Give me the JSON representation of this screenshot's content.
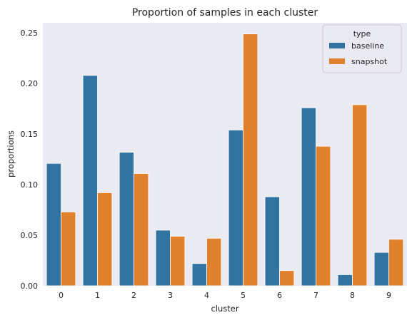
{
  "chart_data": {
    "type": "bar",
    "title": "Proportion of samples in each cluster",
    "xlabel": "cluster",
    "ylabel": "proportions",
    "categories": [
      "0",
      "1",
      "2",
      "3",
      "4",
      "5",
      "6",
      "7",
      "8",
      "9"
    ],
    "series": [
      {
        "name": "baseline",
        "color": "#3274a1",
        "values": [
          0.121,
          0.208,
          0.132,
          0.055,
          0.022,
          0.154,
          0.088,
          0.176,
          0.011,
          0.033
        ]
      },
      {
        "name": "snapshot",
        "color": "#e1812c",
        "values": [
          0.073,
          0.092,
          0.111,
          0.049,
          0.047,
          0.249,
          0.015,
          0.138,
          0.179,
          0.046
        ]
      }
    ],
    "ylim": [
      0,
      0.26
    ],
    "yticks": [
      "0.00",
      "0.05",
      "0.10",
      "0.15",
      "0.20",
      "0.25"
    ],
    "legend": {
      "title": "type",
      "position": "top-right"
    },
    "background": "#eaeaf2",
    "grid": false
  }
}
